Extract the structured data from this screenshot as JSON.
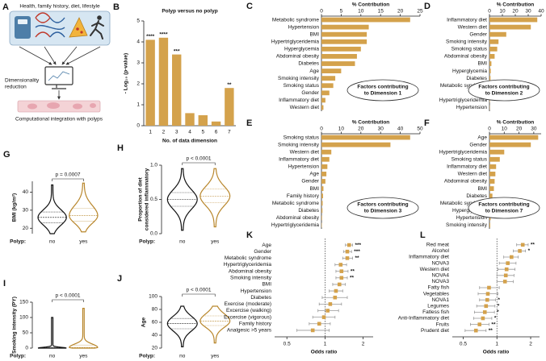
{
  "diagram": {
    "panel": "A",
    "top_text": "Health, family history, diet, lifestyle",
    "middle_text": [
      "Dimensionality",
      "reduction"
    ],
    "bottom_text": "Computational integration with polyps"
  },
  "chart_data": [
    {
      "type": "bar",
      "panel": "B",
      "title": "Polyp versus no polyp",
      "ylabel": "- Log₁₀ (p-value)",
      "xlabel": "No. of data dimension",
      "categories": [
        "1",
        "2",
        "3",
        "4",
        "5",
        "6",
        "7"
      ],
      "values": [
        4.1,
        4.2,
        3.4,
        0.6,
        0.5,
        0.2,
        1.8
      ],
      "annotations": [
        "****",
        "****",
        "***",
        null,
        null,
        null,
        "**"
      ],
      "ylim": [
        0,
        5
      ],
      "yticks": [
        0,
        1,
        2,
        3,
        4,
        5
      ],
      "color": "#d4a24c"
    },
    {
      "type": "hbar",
      "panel": "C",
      "xlabel": "% Contribution",
      "categories": [
        "Metabolic syndrome",
        "Hypertension",
        "BMI",
        "Hypertriglyceridemia",
        "Hyperglycemia",
        "Abdominal obesity",
        "Diabetes",
        "Age",
        "Smoking intensity",
        "Smoking status",
        "Gender",
        "Inflammatory diet",
        "Western diet"
      ],
      "values": [
        22.5,
        12,
        11.5,
        11.5,
        10,
        9,
        8.5,
        5,
        3.5,
        3,
        2,
        1,
        0.5
      ],
      "xlim": [
        0,
        25
      ],
      "xticks": [
        0,
        5,
        10,
        15,
        20,
        25
      ],
      "annotation": [
        "Factors contributing",
        "to Dimension 1"
      ],
      "color": "#d4a24c"
    },
    {
      "type": "hbar",
      "panel": "D",
      "xlabel": "% Contribution",
      "categories": [
        "Inflammatory diet",
        "Western diet",
        "Gender",
        "Smoking intensity",
        "Smoking status",
        "Abdominal obesity",
        "BMI",
        "Hyperglycemia",
        "Diabetes",
        "Metabolic syndrome",
        "Age",
        "Hypertriglyceridemia",
        "Hypertension"
      ],
      "values": [
        37,
        32,
        13,
        7,
        6,
        4,
        1.5,
        1,
        0.8,
        0.6,
        0.4,
        0.3,
        0.2
      ],
      "xlim": [
        0,
        40
      ],
      "xticks": [
        0,
        10,
        20,
        30,
        40
      ],
      "annotation": [
        "Factors contributing",
        "to Dimension 2"
      ],
      "color": "#d4a24c"
    },
    {
      "type": "hbar",
      "panel": "E",
      "xlabel": "% Contribution",
      "categories": [
        "Smoking status",
        "Smoking intensity",
        "Western diet",
        "Inflammatory diet",
        "Hypertension",
        "Age",
        "Gender",
        "BMI",
        "Family history",
        "Metabolic syndrome",
        "Diabetes",
        "Abdominal obesity",
        "Hypertriglyceridemia"
      ],
      "values": [
        45,
        35,
        5,
        4,
        3,
        2.5,
        2,
        1,
        0.8,
        0.6,
        0.5,
        0.3,
        0.2
      ],
      "xlim": [
        0,
        50
      ],
      "xticks": [
        0,
        10,
        20,
        30,
        40,
        50
      ],
      "annotation": [
        "Factors contributing",
        "to Dimension 3"
      ],
      "color": "#d4a24c"
    },
    {
      "type": "hbar",
      "panel": "F",
      "xlabel": "% Contribution",
      "categories": [
        "Age",
        "Gender",
        "Hypertriglyceridemia",
        "Smoking status",
        "Inflammatory diet",
        "Western diet",
        "Abdominal obesity",
        "BMI",
        "Diabetes",
        "Metabolic syndrome",
        "Hyperglycemia",
        "Hypertension",
        "Smoking intensity"
      ],
      "values": [
        33,
        28,
        10,
        7,
        4.5,
        4,
        3.5,
        3,
        2,
        1.5,
        1,
        0.8,
        0.5
      ],
      "xlim": [
        0,
        35
      ],
      "xticks": [
        0,
        10,
        20,
        30
      ],
      "annotation": [
        "Factors contributing",
        "to Dimension 7"
      ],
      "color": "#d4a24c"
    },
    {
      "type": "violin",
      "panel": "G",
      "ylabel": [
        "BMI (kg/m²)"
      ],
      "xlabel": "Polyp:",
      "categories": [
        "no",
        "yes"
      ],
      "groups": [
        {
          "min": 17,
          "q1": 23,
          "median": 26,
          "q3": 29,
          "max": 44,
          "color": "#111111"
        },
        {
          "min": 18,
          "q1": 24,
          "median": 27,
          "q3": 31,
          "max": 45,
          "color": "#b8862b"
        }
      ],
      "annotation": "p = 0.0007",
      "ylim": [
        17,
        46
      ],
      "yticks": [
        20,
        30,
        40
      ]
    },
    {
      "type": "violin",
      "panel": "H",
      "ylabel": [
        "Proportion of diet",
        "considered inflammatory"
      ],
      "xlabel": "Polyp:",
      "categories": [
        "no",
        "yes"
      ],
      "groups": [
        {
          "min": 0.05,
          "q1": 0.4,
          "median": 0.5,
          "q3": 0.6,
          "max": 0.95,
          "color": "#111111"
        },
        {
          "min": 0.1,
          "q1": 0.45,
          "median": 0.55,
          "q3": 0.65,
          "max": 0.95,
          "color": "#b8862b"
        }
      ],
      "annotation": "p < 0.0001",
      "ylim": [
        0,
        1
      ],
      "yticks": [
        {
          "value": 0,
          "label": "0.0"
        },
        0.5,
        {
          "value": 1,
          "label": "1.0"
        }
      ]
    },
    {
      "type": "violin",
      "panel": "I",
      "ylabel": [
        "Smoking intensity (PY)"
      ],
      "xlabel": "Polyp:",
      "categories": [
        "no",
        "yes"
      ],
      "groups": [
        {
          "min": 0,
          "q1": 0,
          "median": 0,
          "q3": 2,
          "max": 100,
          "color": "#111111"
        },
        {
          "min": 0,
          "q1": 0,
          "median": 2,
          "q3": 10,
          "max": 130,
          "color": "#b8862b"
        }
      ],
      "annotation": "p < 0.0001",
      "ylim": [
        0,
        150
      ],
      "yticks": [
        0,
        50,
        100,
        150
      ]
    },
    {
      "type": "violin",
      "panel": "J",
      "ylabel": [
        "Age"
      ],
      "xlabel": "Polyp:",
      "categories": [
        "no",
        "yes"
      ],
      "groups": [
        {
          "min": 22,
          "q1": 50,
          "median": 58,
          "q3": 66,
          "max": 85,
          "color": "#111111"
        },
        {
          "min": 28,
          "q1": 55,
          "median": 62,
          "q3": 70,
          "max": 85,
          "color": "#b8862b"
        }
      ],
      "annotation": "p < 0.0001",
      "ylim": [
        20,
        100
      ],
      "yticks": [
        20,
        40,
        60,
        80,
        100
      ]
    },
    {
      "type": "forest",
      "panel": "K",
      "xlabel": "Odds ratio",
      "categories": [
        "Age",
        "Gender",
        "Metabolic syndrome",
        "Hypertriglyceridemia",
        "Abdominal obesity",
        "Smoking intensity",
        "BMI",
        "Hypertension",
        "Diabetes",
        "Exercise (moderate)",
        "Excercise (walking)",
        "Excercise (vigorous)",
        "Family history",
        "Analgesic >5 years"
      ],
      "values": [
        1.55,
        1.5,
        1.5,
        1.33,
        1.35,
        1.35,
        1.3,
        1.22,
        1.2,
        1.1,
        1.05,
        0.98,
        0.9,
        0.8
      ],
      "ci_low": [
        1.45,
        1.4,
        1.38,
        1.2,
        1.22,
        1.22,
        1.15,
        1.08,
        0.95,
        0.9,
        0.88,
        0.8,
        0.75,
        0.6
      ],
      "ci_high": [
        1.65,
        1.62,
        1.65,
        1.48,
        1.52,
        1.5,
        1.45,
        1.38,
        1.5,
        1.35,
        1.28,
        1.2,
        1.1,
        1.08
      ],
      "annotations": [
        "***",
        "***",
        "**",
        null,
        "**",
        "**",
        null,
        null,
        null,
        null,
        null,
        null,
        null,
        null
      ],
      "xlim": [
        0.4,
        2.4
      ],
      "xticks": [
        0.5,
        1,
        2
      ],
      "log_scale": true,
      "reference_line": 1,
      "color": "#d4a24c"
    },
    {
      "type": "forest",
      "panel": "L",
      "xlabel": "Odds ratio",
      "categories": [
        "Red meat",
        "Alcohol",
        "Inflammatory diet",
        "NOVA3",
        "Western diet",
        "NOVA4",
        "NOVA3",
        "Fatty fish",
        "Vegetables",
        "NOVA1",
        "Legumes",
        "Fatless fish",
        "Anti-Inflammatory diet",
        "Fruits",
        "Prudent diet"
      ],
      "values": [
        1.7,
        1.6,
        1.35,
        1.25,
        1.22,
        1.2,
        1.18,
        0.85,
        0.83,
        0.82,
        0.8,
        0.78,
        0.75,
        0.7,
        0.65
      ],
      "ci_low": [
        1.5,
        1.4,
        1.15,
        1.05,
        1.02,
        1.0,
        1.0,
        0.7,
        0.68,
        0.7,
        0.66,
        0.63,
        0.62,
        0.58,
        0.52
      ],
      "ci_high": [
        1.9,
        1.8,
        1.55,
        1.48,
        1.45,
        1.42,
        1.4,
        1.05,
        1.02,
        0.97,
        0.96,
        0.95,
        0.9,
        0.85,
        0.8
      ],
      "annotations": [
        "**",
        "*",
        null,
        null,
        null,
        null,
        null,
        null,
        null,
        "*",
        "*",
        "*",
        "*",
        "**",
        "**"
      ],
      "xlim": [
        0.4,
        2.4
      ],
      "xticks": [
        0.5,
        1,
        2
      ],
      "log_scale": true,
      "reference_line": 1,
      "color": "#d4a24c"
    }
  ]
}
